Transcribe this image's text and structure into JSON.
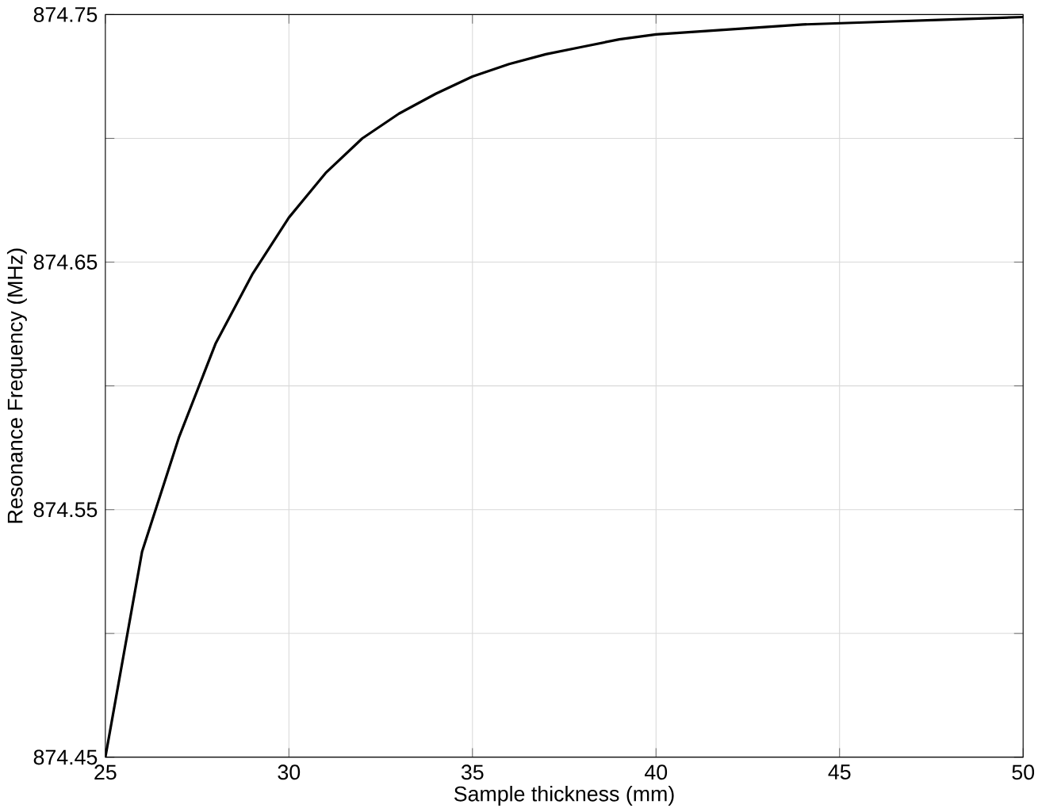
{
  "chart_data": {
    "type": "line",
    "xlabel": "Sample thickness (mm)",
    "ylabel": "Resonance Frequency (MHz)",
    "x": [
      25,
      26,
      27,
      28,
      29,
      30,
      31,
      32,
      33,
      34,
      35,
      36,
      37,
      38,
      39,
      40,
      42,
      44,
      46,
      48,
      50
    ],
    "series": [
      {
        "color": "#000000",
        "values": [
          874.45,
          874.533,
          874.579,
          874.617,
          874.645,
          874.668,
          874.686,
          874.7,
          874.71,
          874.718,
          874.725,
          874.73,
          874.734,
          874.737,
          874.74,
          874.742,
          874.744,
          874.746,
          874.747,
          874.748,
          874.749
        ]
      }
    ],
    "xlim": [
      25,
      50
    ],
    "ylim": [
      874.45,
      874.75
    ],
    "xticks": [
      25,
      30,
      35,
      40,
      45,
      50
    ],
    "yticks": [
      {
        "value": 874.45,
        "label": "874.45"
      },
      {
        "value": 874.5,
        "label": null
      },
      {
        "value": 874.55,
        "label": "874.55"
      },
      {
        "value": 874.6,
        "label": null
      },
      {
        "value": 874.65,
        "label": "874.65"
      },
      {
        "value": 874.7,
        "label": null
      },
      {
        "value": 874.75,
        "label": "874.75"
      }
    ],
    "grid": true,
    "marker": "none",
    "line_style": "solid"
  }
}
